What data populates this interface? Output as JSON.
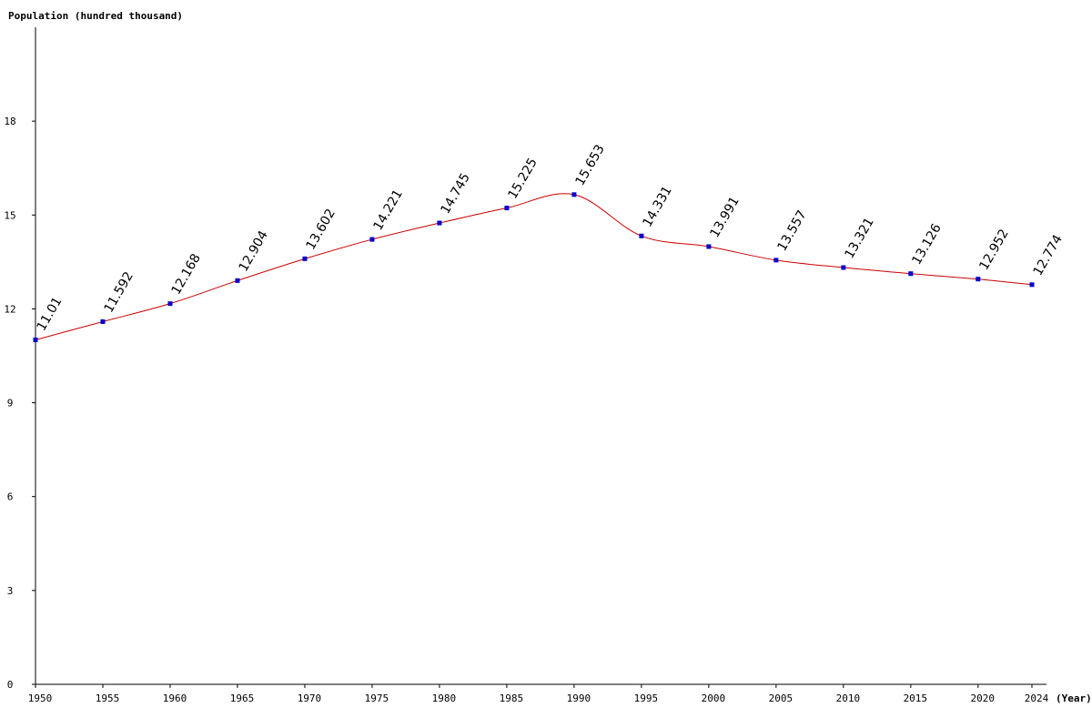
{
  "chart_data": {
    "type": "line",
    "ylabel": "Population (hundred thousand)",
    "xlabel": "(Year)",
    "x": [
      1950,
      1955,
      1960,
      1965,
      1970,
      1975,
      1980,
      1985,
      1990,
      1995,
      2000,
      2005,
      2010,
      2015,
      2020,
      2024
    ],
    "values": [
      11.01,
      11.592,
      12.168,
      12.904,
      13.602,
      14.221,
      14.745,
      15.225,
      15.653,
      14.331,
      13.991,
      13.557,
      13.321,
      13.126,
      12.952,
      12.774
    ],
    "value_labels": [
      "11.01",
      "11.592",
      "12.168",
      "12.904",
      "13.602",
      "14.221",
      "14.745",
      "15.225",
      "15.653",
      "14.331",
      "13.991",
      "13.557",
      "13.321",
      "13.126",
      "12.952",
      "12.774"
    ],
    "yticks": [
      0,
      3,
      6,
      9,
      12,
      15,
      18
    ],
    "ylim": [
      0,
      21
    ],
    "xlim": [
      1950,
      2024
    ],
    "grid": false,
    "colors": {
      "line": "#cc0000",
      "marker": "#0000cc",
      "axis": "#000000"
    }
  }
}
